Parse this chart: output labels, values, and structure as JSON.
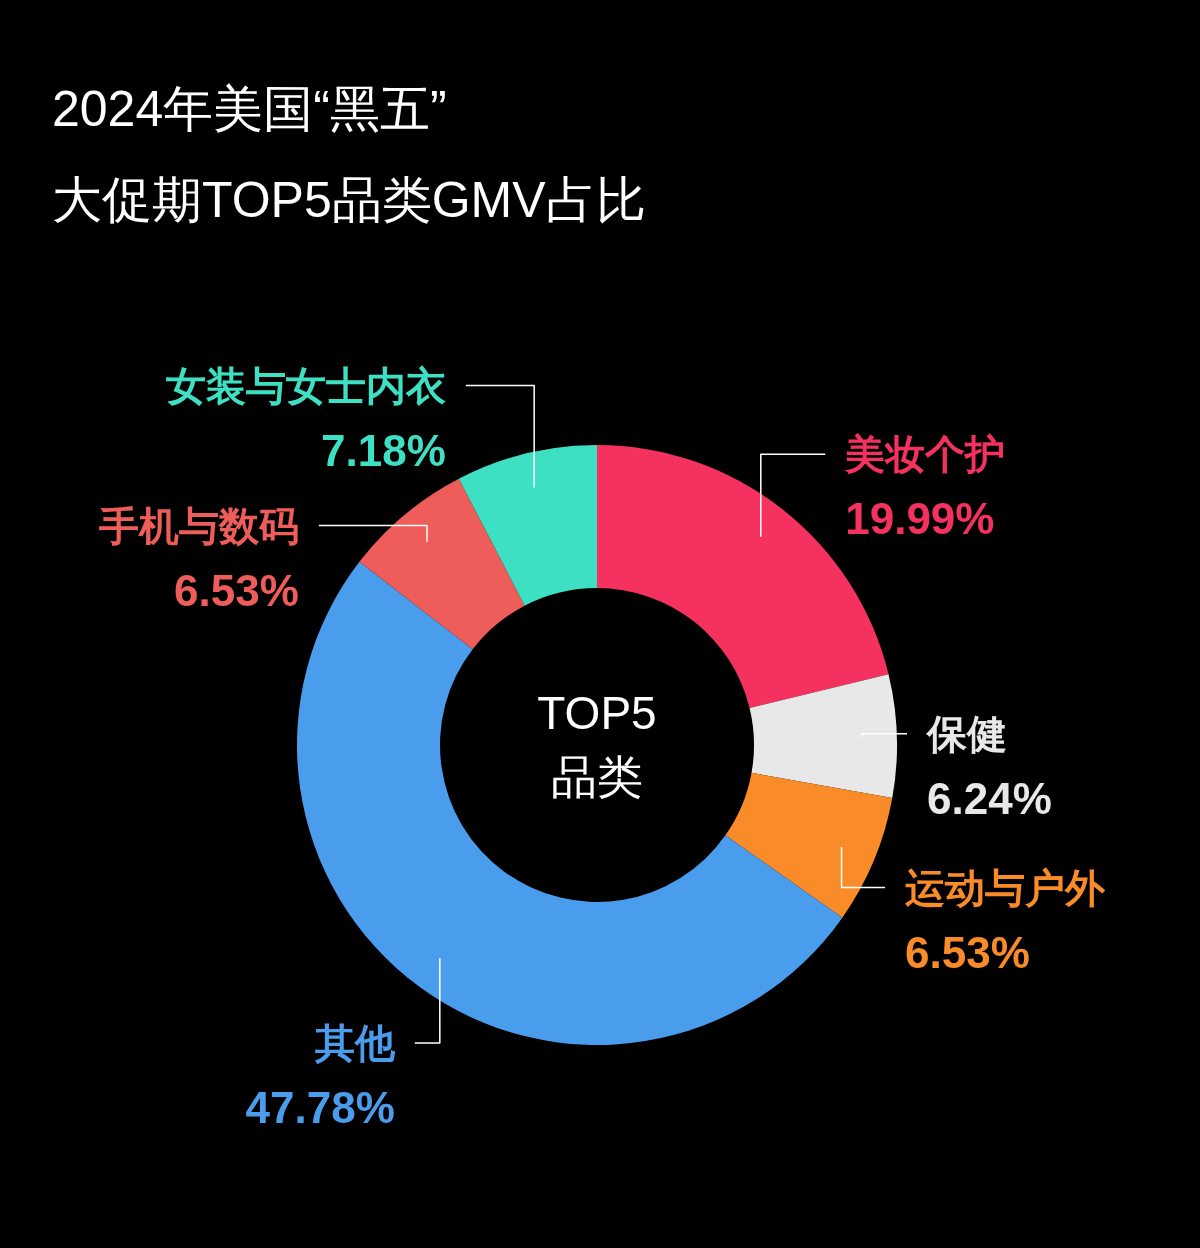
{
  "chart_data": {
    "type": "donut",
    "title": "2024年美国“黑五”",
    "subtitle": "大促期TOP5品类GMV占比",
    "annotations": [
      "TOP5\n品类"
    ],
    "categories": [
      "美妆个护",
      "保健",
      "运动与户外",
      "其他",
      "手机与数码",
      "女装与女士内衣"
    ],
    "values": [
      19.99,
      6.24,
      6.53,
      47.78,
      6.53,
      7.18
    ],
    "value_labels": [
      "19.99%",
      "6.24%",
      "6.53%",
      "47.78%",
      "6.53%",
      "7.18%"
    ],
    "colors": [
      "#f5325f",
      "#e8e8e8",
      "#f98c28",
      "#4a9ded",
      "#ef5d5a",
      "#3ee0c4"
    ]
  }
}
